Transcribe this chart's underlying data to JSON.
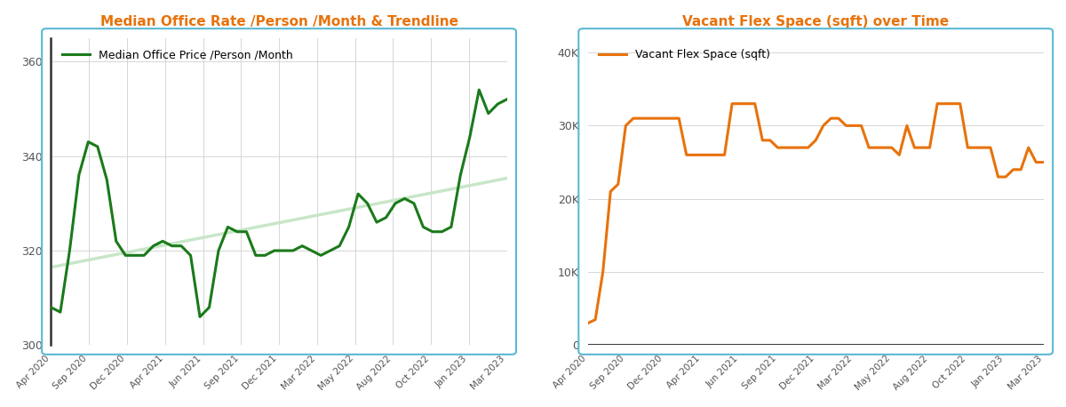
{
  "left_title": "Median Office Rate /Person /Month & Trendline",
  "right_title": "Vacant Flex Space (sqft) over Time",
  "left_legend": "Median Office Price /Person /Month",
  "right_legend": "Vacant Flex Space (sqft)",
  "left_color": "#1a7a1a",
  "left_trend_color": "#c8e6c8",
  "right_color": "#e8720c",
  "title_color": "#e8720c",
  "border_color": "#5bb8d4",
  "background_color": "#ffffff",
  "left_ylim": [
    300,
    365
  ],
  "left_yticks": [
    300,
    320,
    340,
    360
  ],
  "right_ylim": [
    0,
    42000
  ],
  "right_yticks": [
    0,
    10000,
    20000,
    30000,
    40000
  ],
  "x_labels": [
    "Apr 2020",
    "Sep 2020",
    "Dec 2020",
    "Apr 2021",
    "Jun 2021",
    "Sep 2021",
    "Dec 2021",
    "Mar 2022",
    "May 2022",
    "Aug 2022",
    "Oct 2022",
    "Jan 2023",
    "Mar 2023"
  ],
  "left_y": [
    308,
    307,
    320,
    336,
    343,
    342,
    335,
    322,
    319,
    319,
    319,
    321,
    322,
    321,
    321,
    319,
    306,
    308,
    320,
    325,
    324,
    324,
    319,
    319,
    320,
    320,
    320,
    321,
    320,
    319,
    320,
    321,
    325,
    332,
    330,
    326,
    327,
    330,
    331,
    330,
    325,
    324,
    324,
    325,
    336,
    344,
    354,
    349,
    351,
    352
  ],
  "right_y": [
    3000,
    3500,
    10000,
    21000,
    22000,
    30000,
    31000,
    31000,
    31000,
    31000,
    31000,
    31000,
    31000,
    26000,
    26000,
    26000,
    26000,
    26000,
    26000,
    33000,
    33000,
    33000,
    33000,
    28000,
    28000,
    27000,
    27000,
    27000,
    27000,
    27000,
    28000,
    30000,
    31000,
    31000,
    30000,
    30000,
    30000,
    27000,
    27000,
    27000,
    27000,
    26000,
    30000,
    27000,
    27000,
    27000,
    33000,
    33000,
    33000,
    33000,
    27000,
    27000,
    27000,
    27000,
    23000,
    23000,
    24000,
    24000,
    27000,
    25000,
    25000
  ]
}
